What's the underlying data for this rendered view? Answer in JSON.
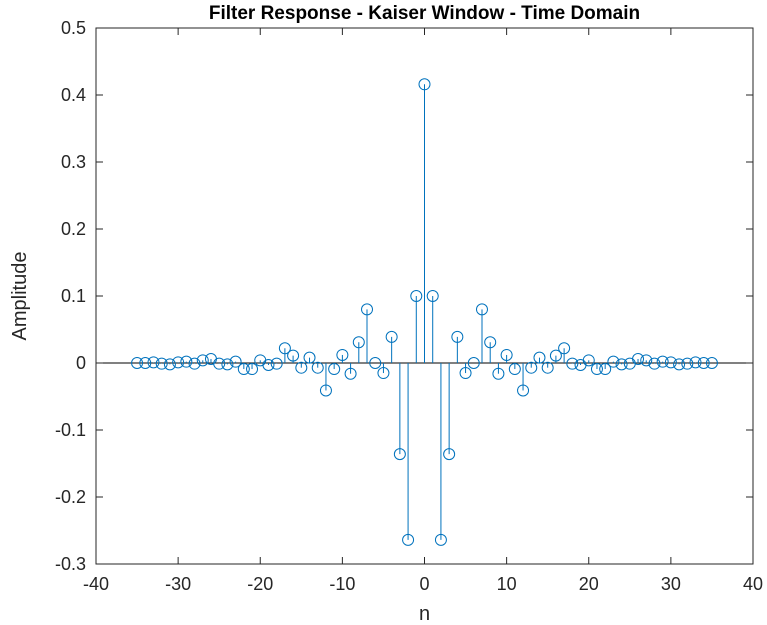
{
  "chart_data": {
    "type": "stem",
    "title": "Filter Response - Kaiser Window - Time Domain",
    "xlabel": "n",
    "ylabel": "Amplitude",
    "xlim": [
      -40,
      40
    ],
    "ylim": [
      -0.3,
      0.5
    ],
    "xticks": [
      -40,
      -30,
      -20,
      -10,
      0,
      10,
      20,
      30,
      40
    ],
    "yticks": [
      -0.3,
      -0.2,
      -0.1,
      0,
      0.1,
      0.2,
      0.3,
      0.4,
      0.5
    ],
    "xtick_labels": [
      "-40",
      "-30",
      "-20",
      "-10",
      "0",
      "10",
      "20",
      "30",
      "40"
    ],
    "ytick_labels": [
      "-0.3",
      "-0.2",
      "-0.1",
      "0",
      "0.1",
      "0.2",
      "0.3",
      "0.4",
      "0.5"
    ],
    "grid": false,
    "series": [
      {
        "color": "#0072BD",
        "x": [
          -35,
          -34,
          -33,
          -32,
          -31,
          -30,
          -29,
          -28,
          -27,
          -26,
          -25,
          -24,
          -23,
          -22,
          -21,
          -20,
          -19,
          -18,
          -17,
          -16,
          -15,
          -14,
          -13,
          -12,
          -11,
          -10,
          -9,
          -8,
          -7,
          -6,
          -5,
          -4,
          -3,
          -2,
          -1,
          0,
          1,
          2,
          3,
          4,
          5,
          6,
          7,
          8,
          9,
          10,
          11,
          12,
          13,
          14,
          15,
          16,
          17,
          18,
          19,
          20,
          21,
          22,
          23,
          24,
          25,
          26,
          27,
          28,
          29,
          30,
          31,
          32,
          33,
          34,
          35
        ],
        "y": [
          0,
          0,
          0.001,
          -0.001,
          -0.002,
          0.001,
          0.002,
          -0.001,
          0.004,
          0.006,
          -0.001,
          -0.002,
          0.002,
          -0.009,
          -0.009,
          0.004,
          -0.003,
          -0.001,
          0.022,
          0.011,
          -0.007,
          0.008,
          -0.007,
          -0.041,
          -0.009,
          0.012,
          -0.016,
          0.031,
          0.08,
          0,
          -0.015,
          0.039,
          -0.136,
          -0.264,
          0.1,
          0.416,
          0.1,
          -0.264,
          -0.136,
          0.039,
          -0.015,
          0,
          0.08,
          0.031,
          -0.016,
          0.012,
          -0.009,
          -0.041,
          -0.007,
          0.008,
          -0.007,
          0.011,
          0.022,
          -0.001,
          -0.003,
          0.004,
          -0.009,
          -0.009,
          0.002,
          -0.002,
          -0.001,
          0.006,
          0.004,
          -0.001,
          0.002,
          0.001,
          -0.002,
          -0.001,
          0.001,
          0,
          0
        ]
      }
    ]
  }
}
